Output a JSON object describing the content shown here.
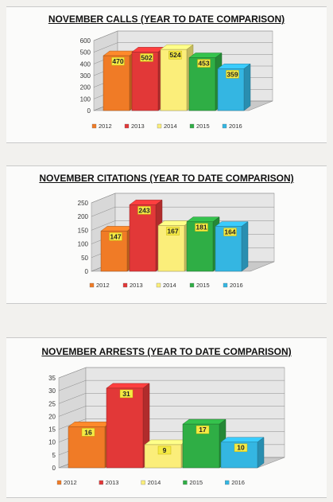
{
  "colors": [
    "#f07b26",
    "#e23838",
    "#fbee7a",
    "#2fae45",
    "#34b6e2"
  ],
  "chart_data": [
    {
      "type": "bar",
      "title": "NOVEMBER CALLS (YEAR TO DATE COMPARISON)",
      "categories": [
        "2012",
        "2013",
        "2014",
        "2015",
        "2016"
      ],
      "series": [
        {
          "values": [
            470,
            502,
            524,
            453,
            359
          ]
        }
      ],
      "ylim": [
        0,
        600
      ],
      "yticks": [
        "0",
        "100",
        "200",
        "300",
        "400",
        "500",
        "600"
      ],
      "labels": [
        "470",
        "502",
        "524",
        "453",
        "359"
      ],
      "legend": [
        "2012",
        "2013",
        "2014",
        "2015",
        "2016"
      ],
      "legend_placement": "bottom",
      "grid": true
    },
    {
      "type": "bar",
      "title": "NOVEMBER CITATIONS (YEAR TO DATE COMPARISON)",
      "categories": [
        "2012",
        "2013",
        "2014",
        "2015",
        "2016"
      ],
      "series": [
        {
          "values": [
            147,
            243,
            167,
            181,
            164
          ]
        }
      ],
      "ylim": [
        0,
        250
      ],
      "yticks": [
        "0",
        "50",
        "100",
        "150",
        "200",
        "250"
      ],
      "labels": [
        "147",
        "243",
        "167",
        "181",
        "164"
      ],
      "legend": [
        "2012",
        "2013",
        "2014",
        "2015",
        "2016"
      ],
      "legend_placement": "bottom",
      "grid": true
    },
    {
      "type": "bar",
      "title": "NOVEMBER ARRESTS (YEAR TO DATE COMPARISON)",
      "categories": [
        "2012",
        "2013",
        "2014",
        "2015",
        "2016"
      ],
      "series": [
        {
          "values": [
            16,
            31,
            9,
            17,
            10
          ]
        }
      ],
      "ylim": [
        0,
        35
      ],
      "yticks": [
        "0",
        "5",
        "10",
        "15",
        "20",
        "25",
        "30",
        "35"
      ],
      "labels": [
        "16",
        "31",
        "9",
        "17",
        "10"
      ],
      "legend": [
        "2012",
        "2013",
        "2014",
        "2015",
        "2016"
      ],
      "legend_placement": "bottom",
      "grid": true
    }
  ]
}
